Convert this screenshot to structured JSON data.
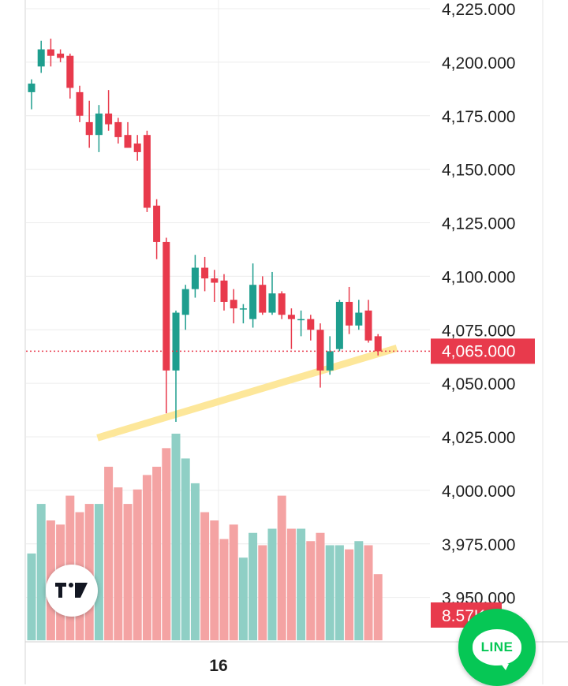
{
  "chart_data": {
    "type": "candlestick",
    "title": "",
    "xlabel": "",
    "ylabel": "",
    "ylim": [
      3940,
      4228
    ],
    "y_ticks": [
      "4,225.000",
      "4,200.000",
      "4,175.000",
      "4,150.000",
      "4,125.000",
      "4,100.000",
      "4,075.000",
      "4,050.000",
      "4,025.000",
      "4,000.000",
      "3,975.000",
      "3,950.000"
    ],
    "x_tick_labels": [
      "16"
    ],
    "last_price": 4065,
    "last_price_label": "4,065.000",
    "volume_label": "8.57K",
    "candles": [
      {
        "o": 4186,
        "h": 4192,
        "l": 4178,
        "c": 4190,
        "vol": 0.42
      },
      {
        "o": 4198,
        "h": 4210,
        "l": 4195,
        "c": 4206,
        "vol": 0.66
      },
      {
        "o": 4206,
        "h": 4211,
        "l": 4198,
        "c": 4203,
        "vol": 0.58
      },
      {
        "o": 4204,
        "h": 4206,
        "l": 4200,
        "c": 4202,
        "vol": 0.56
      },
      {
        "o": 4203,
        "h": 4204,
        "l": 4183,
        "c": 4188,
        "vol": 0.7
      },
      {
        "o": 4186,
        "h": 4189,
        "l": 4172,
        "c": 4175,
        "vol": 0.62
      },
      {
        "o": 4172,
        "h": 4182,
        "l": 4160,
        "c": 4166,
        "vol": 0.66
      },
      {
        "o": 4166,
        "h": 4180,
        "l": 4158,
        "c": 4176,
        "vol": 0.66
      },
      {
        "o": 4176,
        "h": 4187,
        "l": 4168,
        "c": 4171,
        "vol": 0.84
      },
      {
        "o": 4172,
        "h": 4174,
        "l": 4162,
        "c": 4165,
        "vol": 0.74
      },
      {
        "o": 4166,
        "h": 4172,
        "l": 4160,
        "c": 4160,
        "vol": 0.66
      },
      {
        "o": 4162,
        "h": 4166,
        "l": 4154,
        "c": 4158,
        "vol": 0.73
      },
      {
        "o": 4166,
        "h": 4168,
        "l": 4130,
        "c": 4132,
        "vol": 0.8
      },
      {
        "o": 4133,
        "h": 4136,
        "l": 4108,
        "c": 4116,
        "vol": 0.84
      },
      {
        "o": 4116,
        "h": 4118,
        "l": 4036,
        "c": 4056,
        "vol": 0.93
      },
      {
        "o": 4056,
        "h": 4084,
        "l": 4032,
        "c": 4083,
        "vol": 1.0
      },
      {
        "o": 4082,
        "h": 4096,
        "l": 4075,
        "c": 4094,
        "vol": 0.88
      },
      {
        "o": 4094,
        "h": 4110,
        "l": 4090,
        "c": 4104,
        "vol": 0.76
      },
      {
        "o": 4104,
        "h": 4109,
        "l": 4093,
        "c": 4099,
        "vol": 0.62
      },
      {
        "o": 4099,
        "h": 4103,
        "l": 4088,
        "c": 4097,
        "vol": 0.58
      },
      {
        "o": 4098,
        "h": 4101,
        "l": 4084,
        "c": 4088,
        "vol": 0.49
      },
      {
        "o": 4089,
        "h": 4094,
        "l": 4078,
        "c": 4085,
        "vol": 0.56
      },
      {
        "o": 4085,
        "h": 4087,
        "l": 4078,
        "c": 4085,
        "vol": 0.4
      },
      {
        "o": 4080,
        "h": 4106,
        "l": 4076,
        "c": 4096,
        "vol": 0.52
      },
      {
        "o": 4096,
        "h": 4100,
        "l": 4082,
        "c": 4083,
        "vol": 0.46
      },
      {
        "o": 4083,
        "h": 4102,
        "l": 4082,
        "c": 4092,
        "vol": 0.54
      },
      {
        "o": 4092,
        "h": 4093,
        "l": 4080,
        "c": 4082,
        "vol": 0.7
      },
      {
        "o": 4082,
        "h": 4085,
        "l": 4066,
        "c": 4080,
        "vol": 0.54
      },
      {
        "o": 4080,
        "h": 4084,
        "l": 4072,
        "c": 4080,
        "vol": 0.54
      },
      {
        "o": 4080,
        "h": 4082,
        "l": 4070,
        "c": 4075,
        "vol": 0.48
      },
      {
        "o": 4075,
        "h": 4078,
        "l": 4048,
        "c": 4056,
        "vol": 0.52
      },
      {
        "o": 4056,
        "h": 4072,
        "l": 4054,
        "c": 4065,
        "vol": 0.46
      },
      {
        "o": 4066,
        "h": 4089,
        "l": 4065,
        "c": 4088,
        "vol": 0.46
      },
      {
        "o": 4088,
        "h": 4095,
        "l": 4073,
        "c": 4077,
        "vol": 0.44
      },
      {
        "o": 4077,
        "h": 4089,
        "l": 4075,
        "c": 4083,
        "vol": 0.48
      },
      {
        "o": 4084,
        "h": 4089,
        "l": 4069,
        "c": 4070,
        "vol": 0.46
      },
      {
        "o": 4072,
        "h": 4073,
        "l": 4063,
        "c": 4065,
        "vol": 0.32
      }
    ],
    "trendline": {
      "from": {
        "index": 7.2,
        "price": 4025
      },
      "to": {
        "index": 37.6,
        "price": 4066
      }
    },
    "colors": {
      "up": "#1e9e8e",
      "down": "#e83a4c",
      "vol_up": "#8fcfc5",
      "vol_down": "#f4a3a3",
      "trendline": "#fde79a",
      "price_tag": "#e83a4c",
      "grid": "#ececec"
    }
  },
  "brand": {
    "line_text": "LINE"
  }
}
